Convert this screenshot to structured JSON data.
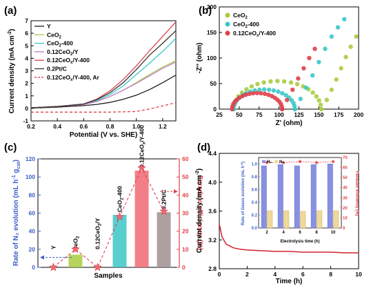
{
  "chart_data": [
    {
      "panel": "(a)",
      "type": "line",
      "xlabel": "Potential (V vs. SHE)",
      "ylabel": "Current density (mA cm",
      "ylabel_sup": "-2",
      "ylabel_end": ")",
      "xlim": [
        0.2,
        1.3
      ],
      "ylim": [
        -1,
        7
      ],
      "xticks": [
        "0.2",
        "0.4",
        "0.6",
        "0.8",
        "1.0",
        "1.2"
      ],
      "yticks": [
        "-1",
        "0",
        "1",
        "2",
        "3",
        "4",
        "5",
        "6",
        "7"
      ],
      "series": [
        {
          "name": "Y",
          "color": "#1a1a1a",
          "dash": false,
          "x": [
            0.2,
            0.4,
            0.6,
            0.7,
            0.8,
            0.9,
            1.0,
            1.1,
            1.2,
            1.3
          ],
          "y": [
            0.02,
            0.1,
            0.22,
            0.32,
            0.48,
            0.72,
            1.05,
            1.5,
            2.05,
            2.65
          ]
        },
        {
          "name": "CeO2",
          "color": "#a8cc42",
          "dash": false,
          "x": [
            0.2,
            0.4,
            0.6,
            0.7,
            0.8,
            0.9,
            1.0,
            1.1,
            1.2,
            1.3
          ],
          "y": [
            0.05,
            0.15,
            0.3,
            0.55,
            0.95,
            1.45,
            2.05,
            2.7,
            3.3,
            3.8
          ]
        },
        {
          "name": "CeO2-400",
          "color": "#3cc6c6",
          "dash": false,
          "x": [
            0.2,
            0.4,
            0.6,
            0.7,
            0.8,
            0.9,
            1.0,
            1.1,
            1.2,
            1.3
          ],
          "y": [
            0.05,
            0.15,
            0.32,
            0.62,
            1.1,
            1.8,
            2.7,
            3.6,
            4.55,
            5.6
          ]
        },
        {
          "name": "0.12CeO2/Y",
          "color": "#c07acc",
          "dash": false,
          "x": [
            0.2,
            0.4,
            0.6,
            0.7,
            0.8,
            0.9,
            1.0,
            1.1,
            1.2,
            1.3
          ],
          "y": [
            0.05,
            0.15,
            0.3,
            0.55,
            0.95,
            1.45,
            2.0,
            2.6,
            3.2,
            3.7
          ]
        },
        {
          "name": "0.12CeOx/Y-400",
          "color": "#e0404a",
          "dash": false,
          "x": [
            0.2,
            0.4,
            0.6,
            0.7,
            0.8,
            0.9,
            1.0,
            1.1,
            1.2,
            1.3
          ],
          "y": [
            0.05,
            0.15,
            0.35,
            0.75,
            1.4,
            2.3,
            3.4,
            4.6,
            5.75,
            6.9
          ]
        },
        {
          "name": "0.2Pt/C",
          "color": "#333333",
          "dash": false,
          "x": [
            0.2,
            0.4,
            0.6,
            0.7,
            0.8,
            0.9,
            1.0,
            1.1,
            1.2,
            1.3
          ],
          "y": [
            0.05,
            0.15,
            0.35,
            0.7,
            1.25,
            2.05,
            3.1,
            4.25,
            5.2,
            6.2
          ]
        },
        {
          "name": "0.12CeOx/Y-400, Ar",
          "color": "#e0404a",
          "dash": true,
          "x": [
            0.2,
            0.4,
            0.6,
            0.8,
            1.0,
            1.1,
            1.2,
            1.3
          ],
          "y": [
            -0.3,
            -0.3,
            -0.3,
            -0.3,
            -0.25,
            -0.05,
            0.2,
            0.45
          ]
        }
      ]
    },
    {
      "panel": "(b)",
      "type": "scatter",
      "xlabel": "Z' (ohm)",
      "ylabel": "-Z'' (ohm)",
      "xlim": [
        25,
        200
      ],
      "ylim": [
        0,
        200
      ],
      "xticks": [
        "25",
        "50",
        "75",
        "100",
        "125",
        "150",
        "175",
        "200"
      ],
      "yticks": [
        "0",
        "50",
        "100",
        "150",
        "200"
      ],
      "series": [
        {
          "name": "CeO2",
          "color": "#a8cc42",
          "arc": [
            43,
            153
          ],
          "tail": [
            [
              153,
              0
            ],
            [
              160,
              18
            ],
            [
              166,
              38
            ],
            [
              172,
              58
            ],
            [
              178,
              80
            ],
            [
              184,
              102
            ],
            [
              190,
              122
            ],
            [
              197,
              142
            ]
          ]
        },
        {
          "name": "CeO2-400",
          "color": "#3cc6c6",
          "arc": [
            43,
            120
          ],
          "tail": [
            [
              120,
              0
            ],
            [
              127,
              20
            ],
            [
              134,
              42
            ],
            [
              142,
              66
            ],
            [
              150,
              92
            ],
            [
              158,
              118
            ],
            [
              166,
              142
            ],
            [
              174,
              160
            ],
            [
              182,
              176
            ]
          ]
        },
        {
          "name": "0.12CeOx/Y-400",
          "color": "#e0404a",
          "arc": [
            41,
            104
          ],
          "tail": [
            [
              104,
              0
            ],
            [
              110,
              18
            ],
            [
              117,
              38
            ],
            [
              124,
              60
            ],
            [
              131,
              80
            ],
            [
              138,
              100
            ],
            [
              145,
              118
            ]
          ]
        }
      ]
    },
    {
      "panel": "(c)",
      "type": "bar",
      "xlabel": "Samples",
      "ylabel": "Rate of N₂ evolution (mL h",
      "ylabel_sup": "-1",
      "ylabel_mid": " g",
      "ylabel_sub": "cat",
      "ylabel_end": ")",
      "ylabel2": "Faradaic efficiency (%)",
      "ylim": [
        0,
        120
      ],
      "ylim2": [
        0,
        60
      ],
      "yticks": [
        "0",
        "20",
        "40",
        "60",
        "80",
        "100",
        "120"
      ],
      "yticks2": [
        "0",
        "10",
        "20",
        "30",
        "40",
        "50",
        "60"
      ],
      "categories": [
        "Y",
        "CeO2",
        "0.12CeO2/Y",
        "CeO2-400",
        "0.12CeOx/Y-400",
        "0.2Pt/C"
      ],
      "values": [
        0,
        14,
        0,
        58,
        107,
        61
      ],
      "colors": [
        "#5a8fd8",
        "#a8cc42",
        "#c07acc",
        "#3cc6c6",
        "#f06872",
        "#a08f8f"
      ],
      "fe": [
        0,
        10,
        0,
        28,
        55,
        31
      ]
    },
    {
      "panel": "(d)",
      "type": "line",
      "xlabel": "Time (h)",
      "ylabel": "Current density (mA cm",
      "ylabel_sup": "-2",
      "ylabel_end": ")",
      "xlim": [
        0,
        10
      ],
      "ylim": [
        2.8,
        4.4
      ],
      "xticks": [
        "0",
        "2",
        "4",
        "6",
        "8",
        "10"
      ],
      "yticks": [
        "2.8",
        "3.2",
        "3.6",
        "4.0",
        "4.4"
      ],
      "x": [
        0,
        0.2,
        0.5,
        1,
        1.5,
        2,
        3,
        4,
        5,
        6,
        7,
        8,
        9,
        10
      ],
      "y": [
        3.42,
        3.24,
        3.14,
        3.09,
        3.07,
        3.06,
        3.05,
        3.04,
        3.04,
        3.03,
        3.03,
        3.03,
        3.02,
        3.02
      ],
      "inset": {
        "type": "bar",
        "xlabel": "Electrolysis time (h)",
        "ylabel": "Rate of Gases evolution (mL h",
        "ylabel_sup": "-1",
        "ylabel_end": ")",
        "ylabel2": "Faradaic efficiency (%)",
        "categories": [
          "2",
          "4",
          "6",
          "8",
          "10"
        ],
        "legend": [
          "H₂",
          "N₂"
        ],
        "h2": [
          0.97,
          0.99,
          0.97,
          0.99,
          1.0
        ],
        "n2": [
          0.27,
          0.27,
          0.26,
          0.27,
          0.27
        ],
        "fe": [
          65,
          65,
          66,
          65,
          66
        ],
        "yticks": [
          "0.0",
          "0.2",
          "0.4",
          "0.6",
          "0.8",
          "1.0"
        ],
        "yticks2": [
          "0",
          "10",
          "20",
          "30",
          "40",
          "50",
          "60",
          "70"
        ],
        "colors": {
          "h2": "#8890e0",
          "n2": "#f0d898",
          "fe": "#e0404a"
        }
      }
    }
  ]
}
